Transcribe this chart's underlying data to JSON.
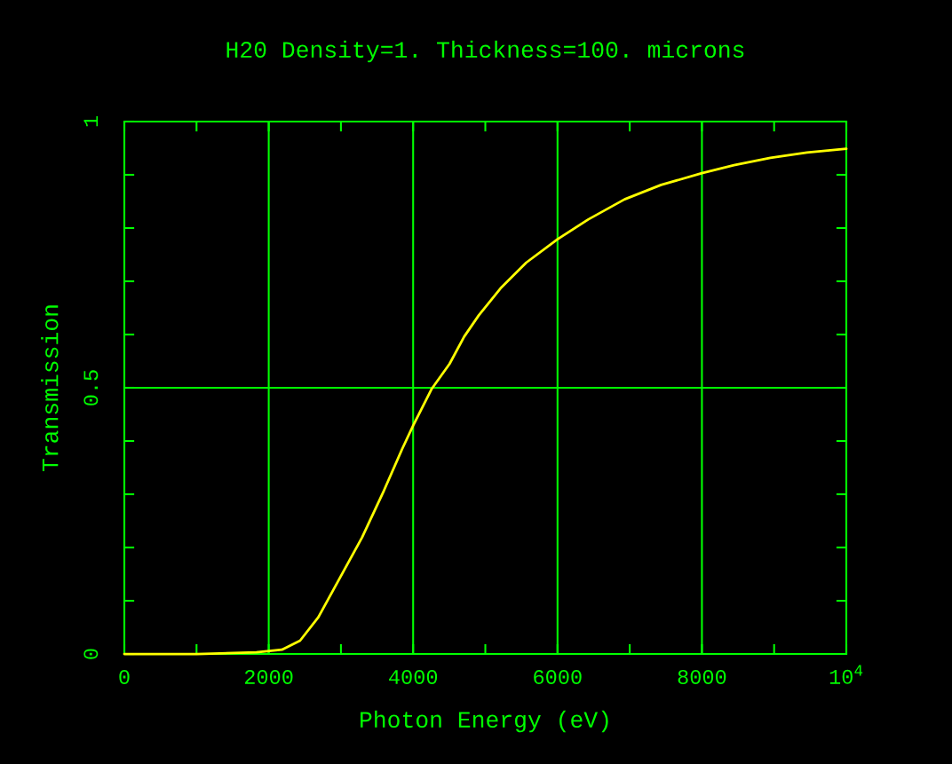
{
  "chart_data": {
    "type": "line",
    "title": "H20 Density=1. Thickness=100. microns",
    "xlabel": "Photon Energy (eV)",
    "ylabel": "Transmission",
    "x": [
      0,
      1000,
      1828,
      2182,
      2434,
      2687,
      2990,
      3293,
      3596,
      3848,
      4000,
      4253,
      4505,
      4707,
      4909,
      5212,
      5566,
      6000,
      6424,
      6929,
      7434,
      8000,
      8444,
      8949,
      9455,
      10000
    ],
    "series": [
      {
        "color": "#ffff00",
        "values": [
          0,
          0,
          0.003,
          0.008,
          0.025,
          0.069,
          0.144,
          0.219,
          0.307,
          0.385,
          0.429,
          0.497,
          0.545,
          0.596,
          0.636,
          0.687,
          0.735,
          0.779,
          0.816,
          0.854,
          0.881,
          0.903,
          0.918,
          0.932,
          0.942,
          0.949
        ]
      }
    ],
    "xlim": [
      0,
      10000
    ],
    "ylim": [
      0,
      1
    ],
    "xticks": [
      0,
      {
        "value": 1000,
        "label": null
      },
      2000,
      {
        "value": 3000,
        "label": null
      },
      4000,
      {
        "value": 5000,
        "label": null
      },
      6000,
      {
        "value": 7000,
        "label": null
      },
      8000,
      {
        "value": 9000,
        "label": null
      },
      {
        "value": 10000,
        "label": "10$^{4}$"
      }
    ],
    "yticks": [
      0,
      {
        "value": 0.1,
        "label": null
      },
      {
        "value": 0.2,
        "label": null
      },
      {
        "value": 0.3,
        "label": null
      },
      {
        "value": 0.4,
        "label": null
      },
      0.5,
      {
        "value": 0.6,
        "label": null
      },
      {
        "value": 0.7,
        "label": null
      },
      {
        "value": 0.8,
        "label": null
      },
      {
        "value": 0.9,
        "label": null
      },
      1
    ],
    "grid": true,
    "marker": "none",
    "line_style": "solid"
  }
}
